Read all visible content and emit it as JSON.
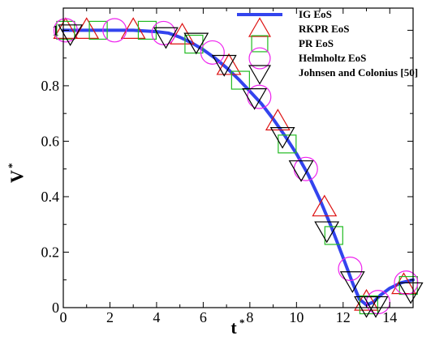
{
  "chart_data": {
    "type": "scatter",
    "xlabel": "t",
    "xlabel_sup": "*",
    "ylabel": "V",
    "ylabel_sup": "*",
    "xlim": [
      0,
      15
    ],
    "ylim": [
      0,
      1.08
    ],
    "x_ticks": [
      0,
      2,
      4,
      6,
      8,
      10,
      12,
      14
    ],
    "y_ticks": [
      0,
      0.2,
      0.4,
      0.6,
      0.8,
      1
    ],
    "y_tick_labels": [
      "0",
      "0.2",
      "0.4",
      "0.6",
      "0.8",
      "1"
    ],
    "grid": false,
    "legend_position": "top-right",
    "series": [
      {
        "name": "IG EoS",
        "kind": "line",
        "color": "#3344ee",
        "x": [
          0,
          1,
          2,
          3,
          4,
          4.5,
          5,
          5.5,
          6,
          6.5,
          7,
          7.5,
          8,
          8.5,
          9,
          9.5,
          10,
          10.5,
          11,
          11.5,
          12,
          12.4,
          12.7,
          13.0,
          13.3,
          13.6,
          14.0,
          14.5,
          15.0
        ],
        "y": [
          1.0,
          1.0,
          1.0,
          1.0,
          0.995,
          0.99,
          0.975,
          0.955,
          0.93,
          0.9,
          0.865,
          0.825,
          0.78,
          0.735,
          0.68,
          0.62,
          0.555,
          0.48,
          0.39,
          0.29,
          0.18,
          0.09,
          0.03,
          0.01,
          0.02,
          0.045,
          0.07,
          0.09,
          0.1
        ]
      },
      {
        "name": "RKPR EoS",
        "kind": "marker",
        "marker": "triangle-up",
        "color": "#dd1111",
        "x": [
          0.1,
          1.0,
          3.0,
          5.1,
          7.1,
          9.2,
          11.2,
          13.0,
          14.6
        ],
        "y": [
          1.0,
          1.0,
          1.0,
          0.98,
          0.87,
          0.67,
          0.36,
          0.02,
          0.08
        ]
      },
      {
        "name": "PR EoS",
        "kind": "marker",
        "marker": "square",
        "color": "#22bb22",
        "x": [
          0.1,
          1.5,
          3.6,
          5.6,
          7.6,
          9.6,
          11.6,
          13.1,
          14.8
        ],
        "y": [
          1.0,
          1.0,
          1.0,
          0.95,
          0.82,
          0.59,
          0.26,
          0.01,
          0.08
        ]
      },
      {
        "name": "Helmholtz EoS",
        "kind": "marker",
        "marker": "circle",
        "color": "#ee22ee",
        "x": [
          0.1,
          2.2,
          4.3,
          6.4,
          8.4,
          10.4,
          12.3,
          13.5,
          14.7
        ],
        "y": [
          1.0,
          1.0,
          0.99,
          0.92,
          0.76,
          0.5,
          0.14,
          0.02,
          0.09
        ]
      },
      {
        "name": "Johnsen and Colonius [50]",
        "kind": "marker",
        "marker": "triangle-down",
        "color": "#000000",
        "x": [
          0.3,
          4.4,
          5.7,
          6.9,
          8.2,
          9.4,
          10.2,
          11.3,
          12.4,
          13.0,
          13.4,
          14.9
        ],
        "y": [
          0.99,
          0.98,
          0.96,
          0.88,
          0.76,
          0.62,
          0.5,
          0.28,
          0.1,
          0.01,
          0.01,
          0.06
        ]
      }
    ]
  }
}
